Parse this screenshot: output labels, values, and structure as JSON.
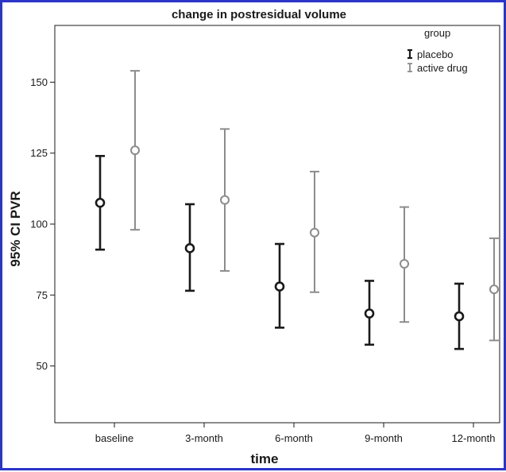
{
  "chart_data": {
    "type": "errorbar",
    "title": "change in postresidual volume",
    "xlabel": "time",
    "ylabel": "95% CI PVR",
    "categories": [
      "baseline",
      "3-month",
      "6-month",
      "9-month",
      "12-month"
    ],
    "yticks": [
      50,
      75,
      100,
      125,
      150
    ],
    "ylim": [
      30,
      170
    ],
    "grid": false,
    "legend": {
      "title": "group",
      "position": "top-right"
    },
    "series": [
      {
        "name": "placebo",
        "color": "#1a1a1a",
        "mean": [
          107.5,
          91.5,
          78,
          68.5,
          67.5
        ],
        "lower": [
          91,
          76.5,
          63.5,
          57.5,
          56
        ],
        "upper": [
          124,
          107,
          93,
          80,
          79
        ]
      },
      {
        "name": "active drug",
        "color": "#8c8c8c",
        "mean": [
          126,
          108.5,
          97,
          86,
          77
        ],
        "lower": [
          98,
          83.5,
          76,
          65.5,
          59
        ],
        "upper": [
          154,
          133.5,
          118.5,
          106,
          95
        ]
      }
    ]
  }
}
